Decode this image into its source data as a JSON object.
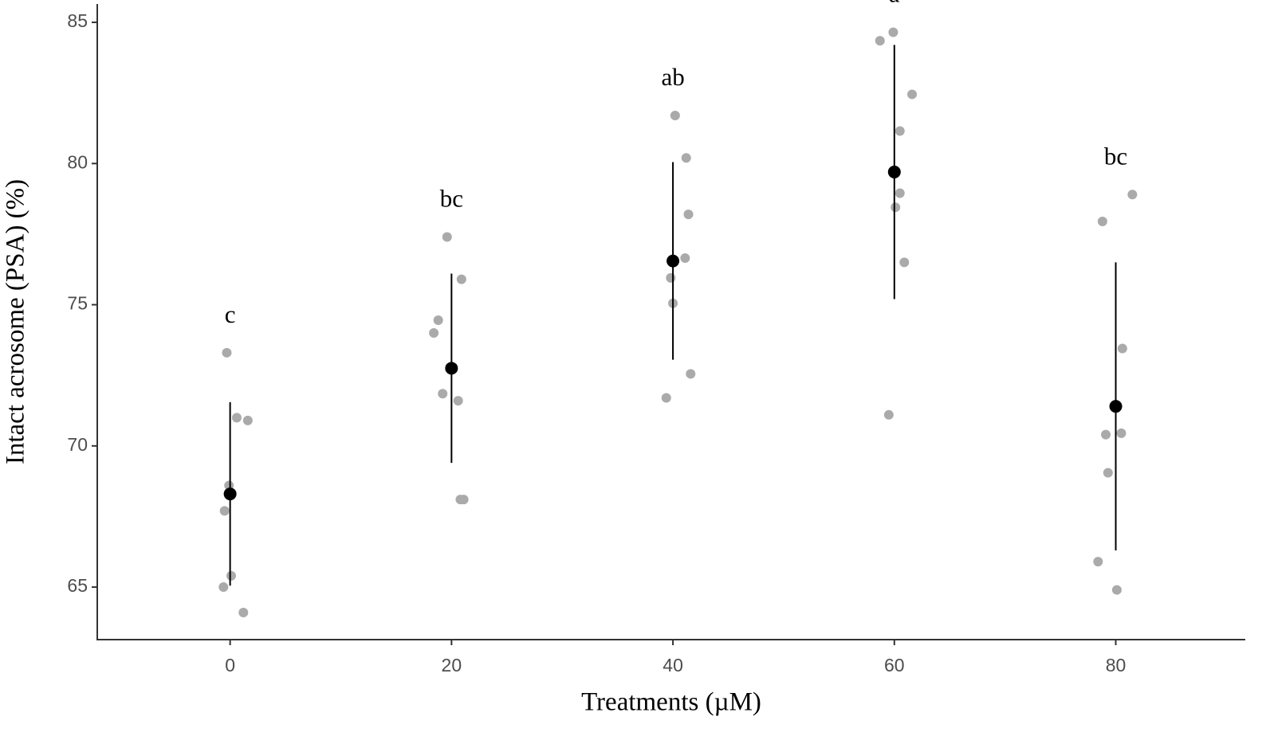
{
  "chart_data": {
    "type": "scatter",
    "x_label": "Treatments (µM)",
    "y_label": "Intact acrosome (PSA) (%)",
    "xlim": [
      -12,
      91.7
    ],
    "ylim": [
      63.14,
      85.65
    ],
    "xticks": [
      0,
      20,
      40,
      60,
      80
    ],
    "yticks": [
      65,
      70,
      75,
      80,
      85
    ],
    "point_color": "#aaaaaa",
    "mean_color": "#000000",
    "groups": [
      {
        "x": 0,
        "label": "c",
        "mean": 68.3,
        "error": 3.25,
        "points_x": [
          -0.3,
          0.6,
          1.6,
          -0.1,
          -0.5,
          0.1,
          -0.6,
          1.2
        ],
        "points_y": [
          73.3,
          71.0,
          70.9,
          68.6,
          67.7,
          65.4,
          65.0,
          64.1
        ]
      },
      {
        "x": 20,
        "label": "bc",
        "mean": 72.75,
        "error": 3.35,
        "points_x": [
          19.6,
          18.8,
          18.4,
          20.9,
          19.2,
          20.6,
          20.8,
          21.1
        ],
        "points_y": [
          77.4,
          74.45,
          74.0,
          75.9,
          71.85,
          71.6,
          68.1,
          68.1
        ]
      },
      {
        "x": 40,
        "label": "ab",
        "mean": 76.55,
        "error": 3.5,
        "points_x": [
          40.2,
          41.2,
          41.4,
          41.1,
          39.8,
          40.0,
          41.6,
          39.4
        ],
        "points_y": [
          81.7,
          80.2,
          78.2,
          76.65,
          75.95,
          75.05,
          72.55,
          71.7
        ]
      },
      {
        "x": 60,
        "label": "a",
        "mean": 79.7,
        "error": 4.5,
        "points_x": [
          59.9,
          58.7,
          61.6,
          60.5,
          60.5,
          60.1,
          60.9,
          59.5
        ],
        "points_y": [
          84.65,
          84.35,
          82.45,
          81.15,
          78.95,
          78.45,
          76.5,
          71.1
        ]
      },
      {
        "x": 80,
        "label": "bc",
        "mean": 71.4,
        "error": 5.1,
        "points_x": [
          81.5,
          78.8,
          80.6,
          80.5,
          79.1,
          79.3,
          78.4,
          80.1
        ],
        "points_y": [
          78.9,
          77.95,
          73.45,
          70.45,
          70.4,
          69.05,
          65.9,
          64.9
        ]
      }
    ]
  }
}
